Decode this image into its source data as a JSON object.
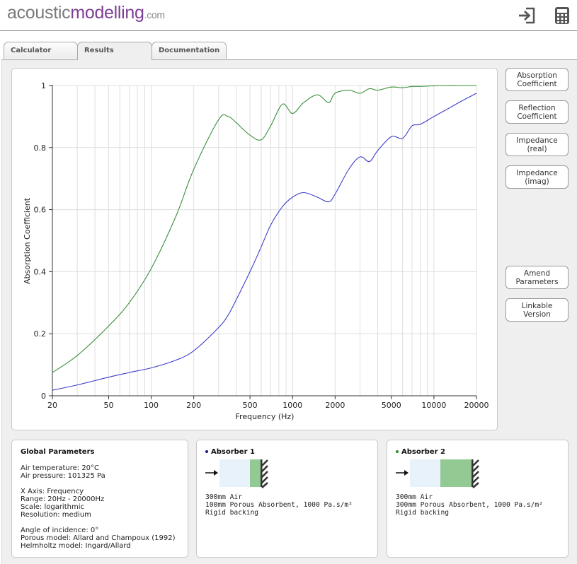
{
  "header": {
    "logo_part1": "acoustic",
    "logo_part2": "modelling",
    "logo_part3": ".com",
    "icons": [
      "login-icon",
      "calculator-icon"
    ]
  },
  "tabs": [
    {
      "label": "Calculator",
      "active": false
    },
    {
      "label": "Results",
      "active": true
    },
    {
      "label": "Documentation",
      "active": false
    }
  ],
  "side_buttons": [
    {
      "label": "Absorption\nCoefficient"
    },
    {
      "label": "Reflection\nCoefficient"
    },
    {
      "label": "Impedance\n(real)"
    },
    {
      "label": "Impedance\n(imag)"
    },
    {
      "label": "Amend\nParameters"
    },
    {
      "label": "Linkable\nVersion"
    }
  ],
  "chart_data": {
    "type": "line",
    "title": "",
    "xlabel": "Frequency (Hz)",
    "ylabel": "Absorption Coefficient",
    "xscale": "log",
    "xlim": [
      20,
      20000
    ],
    "ylim": [
      0,
      1
    ],
    "grid": true,
    "x_ticks": [
      "20",
      "50",
      "100",
      "200",
      "500",
      "1000",
      "2000",
      "5000",
      "10000",
      "20000"
    ],
    "y_ticks": [
      "0",
      "0.2",
      "0.4",
      "0.6",
      "0.8",
      "1"
    ],
    "x": [
      20,
      30,
      50,
      70,
      100,
      150,
      200,
      300,
      350,
      400,
      500,
      600,
      700,
      850,
      1000,
      1200,
      1500,
      1800,
      2000,
      2500,
      3000,
      3500,
      4000,
      5000,
      6000,
      7000,
      8000,
      10000,
      12000,
      15000,
      20000
    ],
    "series": [
      {
        "color": "#3b8f3b",
        "values": [
          0.075,
          0.13,
          0.225,
          0.3,
          0.41,
          0.58,
          0.73,
          0.89,
          0.9,
          0.88,
          0.84,
          0.825,
          0.87,
          0.94,
          0.91,
          0.945,
          0.97,
          0.945,
          0.975,
          0.985,
          0.975,
          0.99,
          0.985,
          0.995,
          0.993,
          0.997,
          0.997,
          0.999,
          1.0,
          1.0,
          1.0
        ]
      },
      {
        "color": "#3d3dc8",
        "values": [
          0.018,
          0.035,
          0.06,
          0.075,
          0.09,
          0.115,
          0.145,
          0.22,
          0.26,
          0.31,
          0.4,
          0.48,
          0.55,
          0.61,
          0.64,
          0.655,
          0.64,
          0.625,
          0.65,
          0.73,
          0.77,
          0.755,
          0.79,
          0.835,
          0.83,
          0.87,
          0.875,
          0.9,
          0.92,
          0.945,
          0.975
        ]
      }
    ]
  },
  "global_params": {
    "title": "Global Parameters",
    "lines": [
      "Air temperature: 20°C",
      "Air pressure: 101325 Pa",
      "",
      "X Axis: Frequency",
      "Range: 20Hz - 20000Hz",
      "Scale: logarithmic",
      "Resolution: medium",
      "",
      "Angle of incidence: 0°",
      "Porous model: Allard and Champoux (1992)",
      "Helmholtz model: Ingard/Allard"
    ]
  },
  "absorber1": {
    "title": "Absorber 1",
    "dot_color": "#1a1a8c",
    "lines": [
      "300mm Air",
      "100mm Porous Absorbent, 1000 Pa.s/m²",
      "Rigid backing"
    ]
  },
  "absorber2": {
    "title": "Absorber 2",
    "dot_color": "#2a8a2a",
    "lines": [
      "300mm Air",
      "300mm Porous Absorbent, 1000 Pa.s/m²",
      "Rigid backing"
    ]
  },
  "colors": {
    "air_layer": "#e8f2fb",
    "porous_layer": "#93c993",
    "backing": "#333333"
  }
}
